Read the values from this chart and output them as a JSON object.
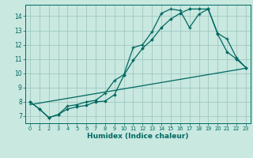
{
  "background_color": "#c8e8e0",
  "grid_color": "#a0c8c0",
  "line_color": "#006860",
  "spine_color": "#006860",
  "xlabel": "Humidex (Indice chaleur)",
  "xlim": [
    -0.5,
    23.5
  ],
  "ylim": [
    6.5,
    14.8
  ],
  "xticks": [
    0,
    1,
    2,
    3,
    4,
    5,
    6,
    7,
    8,
    9,
    10,
    11,
    12,
    13,
    14,
    15,
    16,
    17,
    18,
    19,
    20,
    21,
    22,
    23
  ],
  "yticks": [
    7,
    8,
    9,
    10,
    11,
    12,
    13,
    14
  ],
  "line1_x": [
    0,
    1,
    2,
    3,
    4,
    5,
    6,
    7,
    8,
    9,
    10,
    11,
    12,
    13,
    14,
    15,
    16,
    17,
    18,
    19,
    20,
    21,
    22,
    23
  ],
  "line1_y": [
    8.0,
    7.5,
    6.9,
    7.1,
    7.7,
    7.8,
    8.0,
    8.1,
    8.6,
    9.5,
    9.9,
    11.8,
    12.0,
    12.9,
    14.2,
    14.5,
    14.4,
    13.2,
    14.15,
    14.5,
    12.8,
    12.4,
    11.1,
    10.4
  ],
  "line2_x": [
    0,
    1,
    2,
    3,
    4,
    5,
    6,
    7,
    8,
    9,
    10,
    11,
    12,
    13,
    14,
    15,
    16,
    17,
    18,
    19,
    20,
    21,
    22,
    23
  ],
  "line2_y": [
    8.0,
    7.5,
    6.9,
    7.1,
    7.5,
    7.65,
    7.75,
    8.0,
    8.05,
    8.5,
    9.85,
    10.9,
    11.75,
    12.35,
    13.2,
    13.8,
    14.2,
    14.5,
    14.5,
    14.5,
    12.75,
    11.5,
    11.0,
    10.4
  ],
  "line3_x": [
    0,
    23
  ],
  "line3_y": [
    7.8,
    10.35
  ]
}
